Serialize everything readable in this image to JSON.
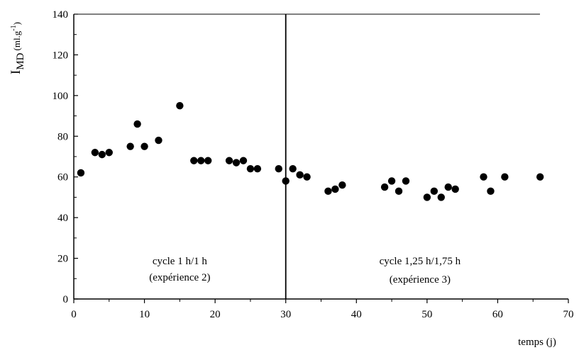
{
  "chart_data": {
    "type": "scatter",
    "ylabel_main": "I",
    "ylabel_sub": "MD",
    "ylabel_unit": "(ml.g",
    "ylabel_sup": "-1",
    "ylabel_close": ")",
    "xlabel": "temps (j)",
    "xlim": [
      0,
      70
    ],
    "ylim": [
      0,
      140
    ],
    "xticks": [
      0,
      10,
      20,
      30,
      40,
      50,
      60,
      70
    ],
    "yticks": [
      0,
      20,
      40,
      60,
      80,
      100,
      120,
      140
    ],
    "grid": false,
    "divider_x": 30,
    "annotations": [
      {
        "id": "left1",
        "text": "cycle 1 h/1 h",
        "x": 15,
        "y": 17
      },
      {
        "id": "left2",
        "text": "(expérience 2)",
        "x": 15,
        "y": 9
      },
      {
        "id": "right1",
        "text": "cycle 1,25 h/1,75 h",
        "x": 49,
        "y": 17
      },
      {
        "id": "right2",
        "text": "(expérience 3)",
        "x": 49,
        "y": 8
      }
    ],
    "series": [
      {
        "marker": "filled-circle",
        "color": "#000000",
        "points": [
          [
            1,
            62
          ],
          [
            3,
            72
          ],
          [
            4,
            71
          ],
          [
            5,
            72
          ],
          [
            8,
            75
          ],
          [
            9,
            86
          ],
          [
            10,
            75
          ],
          [
            12,
            78
          ],
          [
            15,
            95
          ],
          [
            17,
            68
          ],
          [
            18,
            68
          ],
          [
            19,
            68
          ],
          [
            22,
            68
          ],
          [
            23,
            67
          ],
          [
            24,
            68
          ],
          [
            25,
            64
          ],
          [
            26,
            64
          ],
          [
            29,
            64
          ],
          [
            30,
            58
          ],
          [
            31,
            64
          ],
          [
            32,
            61
          ],
          [
            33,
            60
          ],
          [
            36,
            53
          ],
          [
            37,
            54
          ],
          [
            38,
            56
          ],
          [
            44,
            55
          ],
          [
            45,
            58
          ],
          [
            46,
            53
          ],
          [
            47,
            58
          ],
          [
            50,
            50
          ],
          [
            51,
            53
          ],
          [
            52,
            50
          ],
          [
            53,
            55
          ],
          [
            54,
            54
          ],
          [
            58,
            60
          ],
          [
            59,
            53
          ],
          [
            61,
            60
          ],
          [
            66,
            60
          ]
        ]
      }
    ]
  }
}
